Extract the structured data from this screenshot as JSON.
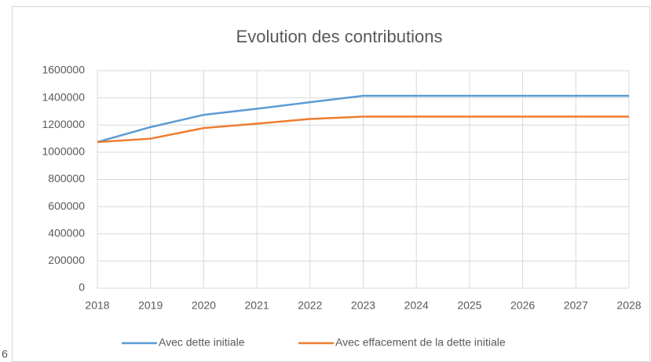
{
  "margin_text": "6",
  "chart_data": {
    "type": "line",
    "title": "Evolution des contributions",
    "x": [
      2018,
      2019,
      2020,
      2021,
      2022,
      2023,
      2024,
      2025,
      2026,
      2027,
      2028
    ],
    "series": [
      {
        "name": "Avec dette initiale",
        "color": "#5b9bd5",
        "values": [
          1075000,
          1185000,
          1275000,
          1320000,
          1368000,
          1415000,
          1415000,
          1415000,
          1415000,
          1415000,
          1415000
        ]
      },
      {
        "name": "Avec effacement de la dette initiale",
        "color": "#ed7d31",
        "values": [
          1075000,
          1100000,
          1178000,
          1210000,
          1245000,
          1262000,
          1262000,
          1262000,
          1262000,
          1262000,
          1262000
        ]
      }
    ],
    "xlim": [
      2018,
      2028
    ],
    "xticks": [
      2018,
      2019,
      2020,
      2021,
      2022,
      2023,
      2024,
      2025,
      2026,
      2027,
      2028
    ],
    "ylim": [
      0,
      1600000
    ],
    "yticks": [
      0,
      200000,
      400000,
      600000,
      800000,
      1000000,
      1200000,
      1400000,
      1600000
    ],
    "grid": true,
    "legend": "bottom"
  }
}
